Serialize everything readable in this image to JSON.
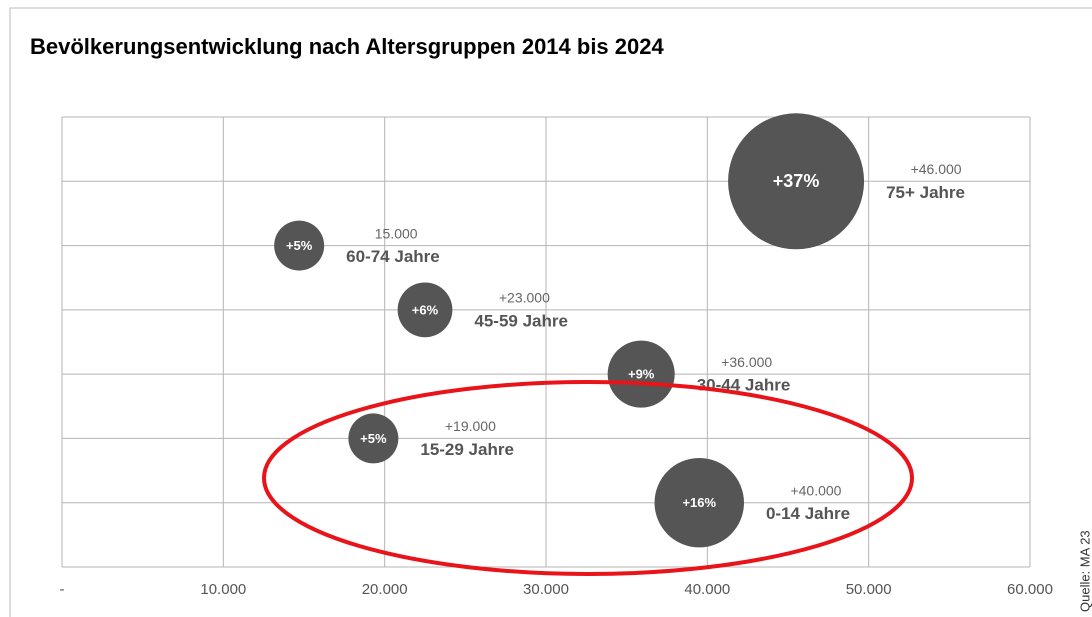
{
  "chart_data": {
    "type": "bubble",
    "title": "Bevölkerungsentwicklung nach Altersgruppen 2014 bis 2024",
    "source": "Quelle: MA 23",
    "labels": [
      "0-14 Jahre",
      "15-29 Jahre",
      "30-44 Jahre",
      "45-59 Jahre",
      "60-74 Jahre",
      "75+ Jahre"
    ],
    "x": [
      39500,
      19300,
      35900,
      22500,
      14700,
      45500
    ],
    "y": [
      1,
      2,
      3,
      4,
      5,
      6
    ],
    "size": [
      16,
      5,
      9,
      6,
      5,
      37
    ],
    "size_labels": [
      "+16%",
      "+5%",
      "+9%",
      "+6%",
      "+5%",
      "+37%"
    ],
    "increase": [
      40000,
      19000,
      36000,
      23000,
      15000,
      46000
    ],
    "increase_labels": [
      "+40.000",
      "+19.000",
      "+36.000",
      "+23.000",
      "15.000",
      "+46.000"
    ],
    "color": "#555555",
    "xlim": [
      0,
      60000
    ],
    "xticks": [
      {
        "value": 0,
        "label": "-"
      },
      {
        "value": 10000,
        "label": "10.000"
      },
      {
        "value": 20000,
        "label": "20.000"
      },
      {
        "value": 30000,
        "label": "30.000"
      },
      {
        "value": 40000,
        "label": "40.000"
      },
      {
        "value": 50000,
        "label": "50.000"
      },
      {
        "value": 60000,
        "label": "60.000"
      }
    ],
    "ylim": [
      0,
      7
    ],
    "yticks": [
      0,
      1,
      2,
      3,
      4,
      5,
      6,
      7
    ],
    "grid": true
  }
}
